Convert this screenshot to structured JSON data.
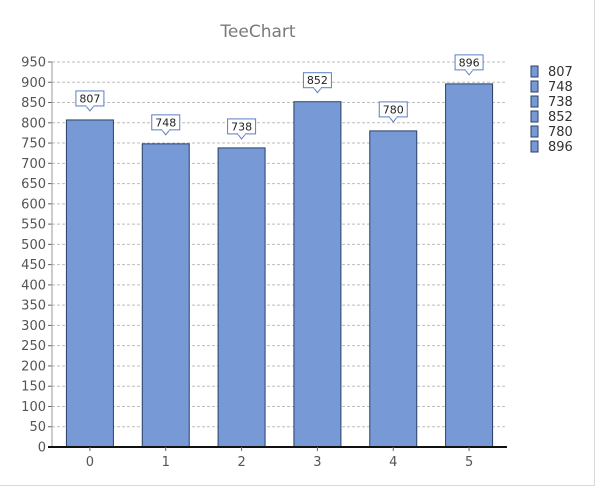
{
  "chart_data": {
    "type": "bar",
    "title": "TeeChart",
    "categories": [
      "0",
      "1",
      "2",
      "3",
      "4",
      "5"
    ],
    "values": [
      807,
      748,
      738,
      852,
      780,
      896
    ],
    "ylim": [
      0,
      950
    ],
    "ytick_step": 50,
    "ytick_labels": [
      "0",
      "50",
      "100",
      "150",
      "200",
      "250",
      "300",
      "350",
      "400",
      "450",
      "500",
      "550",
      "600",
      "650",
      "700",
      "750",
      "800",
      "850",
      "900",
      "950"
    ],
    "legend": [
      "807",
      "748",
      "738",
      "852",
      "780",
      "896"
    ],
    "legend_position": "right",
    "grid": true,
    "colors": {
      "bar_fill": "#7799d6",
      "bar_stroke": "#2b3f66",
      "grid": "#bdbdbd",
      "axis": "#111111",
      "mark_border": "#5a7fc4"
    }
  }
}
